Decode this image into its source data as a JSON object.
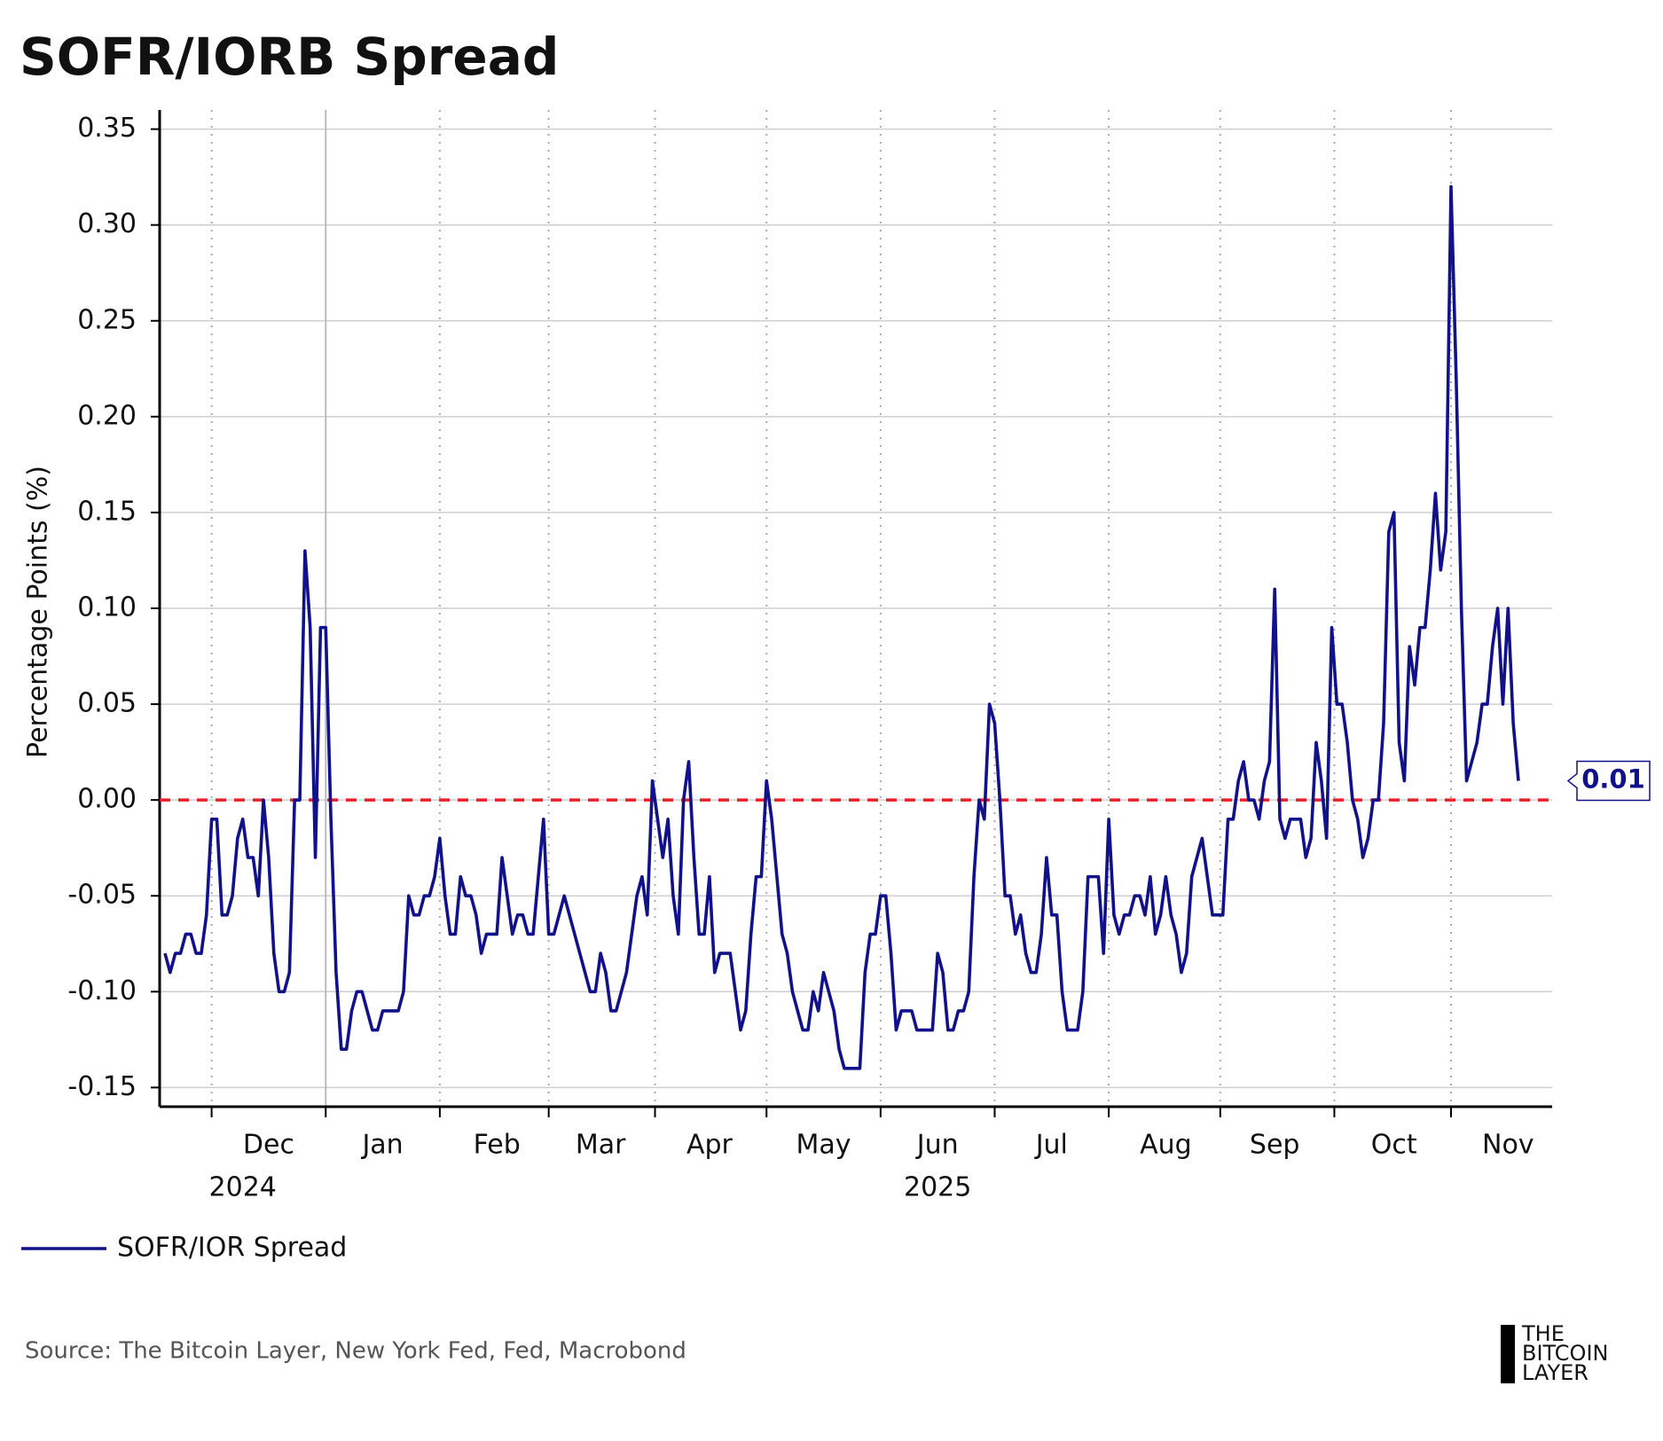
{
  "chart_data": {
    "type": "line",
    "title": "SOFR/IORB Spread",
    "y_axis_label": "Percentage Points (%)",
    "source": "Source: The Bitcoin Layer, New York Fed, Fed, Macrobond",
    "logo": [
      "THE",
      "BITCOIN",
      "LAYER"
    ],
    "legend": "below",
    "grid": true,
    "ylim": [
      -0.16,
      0.36
    ],
    "yticks": [
      0.35,
      {
        "value": 0.3,
        "label": "0.30"
      },
      0.25,
      {
        "value": 0.2,
        "label": "0.20"
      },
      0.15,
      {
        "value": 0.1,
        "label": "0.10"
      },
      0.05,
      {
        "value": 0,
        "label": "0.00"
      },
      -0.05,
      {
        "value": -0.1,
        "label": "-0.10"
      },
      -0.15
    ],
    "reference_line": {
      "value": 0,
      "color": "#e8202a",
      "style": "dashed"
    },
    "categories": [
      null,
      null,
      null,
      null,
      null,
      null,
      null,
      null,
      null,
      null,
      null,
      null,
      null,
      null,
      null,
      null,
      null,
      null,
      null,
      null,
      "Dec",
      null,
      null,
      null,
      null,
      null,
      null,
      null,
      null,
      null,
      null,
      null,
      null,
      null,
      null,
      null,
      null,
      null,
      null,
      null,
      null,
      null,
      "Jan",
      null,
      null,
      null,
      null,
      null,
      null,
      null,
      null,
      null,
      null,
      null,
      null,
      null,
      null,
      null,
      null,
      null,
      null,
      null,
      null,
      null,
      "Feb",
      null,
      null,
      null,
      null,
      null,
      null,
      null,
      null,
      null,
      null,
      null,
      null,
      null,
      null,
      null,
      null,
      null,
      null,
      null,
      "Mar",
      null,
      null,
      null,
      null,
      null,
      null,
      null,
      null,
      null,
      null,
      null,
      null,
      null,
      null,
      null,
      null,
      null,
      null,
      null,
      null,
      "Apr",
      null,
      null,
      null,
      null,
      null,
      null,
      null,
      null,
      null,
      null,
      null,
      null,
      null,
      null,
      null,
      null,
      null,
      null,
      null,
      null,
      null,
      "May",
      null,
      null,
      null,
      null,
      null,
      null,
      null,
      null,
      null,
      null,
      null,
      null,
      null,
      null,
      null,
      null,
      null,
      null,
      null,
      null,
      null,
      "Jun",
      null,
      null,
      null,
      null,
      null,
      null,
      null,
      null,
      null,
      null,
      null,
      null,
      null,
      null,
      null,
      null,
      null,
      null,
      null,
      null,
      null,
      "Jul",
      null,
      null,
      null,
      null,
      null,
      null,
      null,
      null,
      null,
      null,
      null,
      null,
      null,
      null,
      null,
      null,
      null,
      null,
      null,
      null,
      null,
      "Aug",
      null,
      null,
      null,
      null,
      null,
      null,
      null,
      null,
      null,
      null,
      null,
      null,
      null,
      null,
      null,
      null,
      null,
      null,
      null,
      null,
      "Sep",
      null,
      null,
      null,
      null,
      null,
      null,
      null,
      null,
      null,
      null,
      null,
      null,
      null,
      null,
      null,
      null,
      null,
      null,
      null,
      null,
      null,
      null,
      "Oct",
      null,
      null,
      null,
      null,
      null,
      null,
      null,
      null,
      null,
      null,
      null,
      null,
      null,
      null,
      null,
      null,
      null,
      null,
      null,
      null,
      null,
      "Nov",
      null,
      null
    ],
    "category_years": [
      null,
      null,
      null,
      null,
      null,
      null,
      null,
      null,
      null,
      null,
      null,
      null,
      null,
      null,
      null,
      "2024",
      null,
      null,
      null,
      null,
      null,
      null,
      null,
      null,
      null,
      null,
      null,
      null,
      null,
      null,
      null,
      null,
      null,
      null,
      null,
      null,
      null,
      null,
      null,
      null,
      null,
      null,
      null,
      null,
      null,
      null,
      null,
      null,
      null,
      null,
      null,
      null,
      null,
      null,
      null,
      null,
      null,
      null,
      null,
      null,
      null,
      null,
      null,
      null,
      null,
      null,
      null,
      null,
      null,
      null,
      null,
      null,
      null,
      null,
      null,
      null,
      null,
      null,
      null,
      null,
      null,
      null,
      null,
      null,
      null,
      null,
      null,
      null,
      null,
      null,
      null,
      null,
      null,
      null,
      null,
      null,
      null,
      null,
      null,
      null,
      null,
      null,
      null,
      null,
      null,
      null,
      null,
      null,
      null,
      null,
      null,
      null,
      null,
      null,
      null,
      null,
      null,
      null,
      null,
      null,
      null,
      null,
      null,
      null,
      null,
      null,
      null,
      null,
      null,
      null,
      null,
      null,
      null,
      null,
      null,
      null,
      null,
      null,
      null,
      null,
      null,
      null,
      null,
      null,
      null,
      null,
      null,
      null,
      null,
      "2025",
      null,
      null,
      null,
      null,
      null,
      null,
      null,
      null,
      null,
      null,
      null,
      null,
      null,
      null,
      null,
      null,
      null,
      null,
      null,
      null,
      null,
      null,
      null,
      null,
      null,
      null,
      null,
      null,
      null,
      null,
      null,
      null,
      null,
      null,
      null,
      null,
      null,
      null,
      null,
      null,
      null,
      null,
      null,
      null,
      null,
      null,
      null,
      null,
      null,
      null,
      null,
      null,
      null,
      null,
      null,
      null,
      null,
      null,
      null,
      null,
      null,
      null,
      null,
      null,
      null,
      null,
      null,
      null,
      null,
      null,
      null,
      null,
      null,
      null,
      null,
      null,
      null,
      null,
      null,
      null,
      null,
      null,
      null,
      null,
      null,
      null,
      null,
      null,
      null,
      null,
      null,
      null,
      null,
      null,
      null,
      null,
      null,
      null,
      null,
      null,
      null,
      null,
      null,
      null,
      null,
      null,
      null,
      null,
      null,
      null,
      null,
      null
    ],
    "series": [
      {
        "name": "SOFR/IOR Spread",
        "color": "#11118a",
        "values": [
          -0.08,
          -0.09,
          -0.08,
          -0.08,
          -0.07,
          -0.07,
          -0.08,
          -0.08,
          -0.06,
          -0.01,
          -0.01,
          -0.06,
          -0.06,
          -0.05,
          -0.02,
          -0.01,
          -0.03,
          -0.03,
          -0.05,
          0.0,
          -0.03,
          -0.08,
          -0.1,
          -0.1,
          -0.09,
          0.0,
          0.0,
          0.13,
          0.09,
          -0.03,
          0.09,
          0.09,
          -0.01,
          -0.09,
          -0.13,
          -0.13,
          -0.11,
          -0.1,
          -0.1,
          -0.11,
          -0.12,
          -0.12,
          -0.11,
          -0.11,
          -0.11,
          -0.11,
          -0.1,
          -0.05,
          -0.06,
          -0.06,
          -0.05,
          -0.05,
          -0.04,
          -0.02,
          -0.05,
          -0.07,
          -0.07,
          -0.04,
          -0.05,
          -0.05,
          -0.06,
          -0.08,
          -0.07,
          -0.07,
          -0.07,
          -0.03,
          -0.05,
          -0.07,
          -0.06,
          -0.06,
          -0.07,
          -0.07,
          -0.04,
          -0.01,
          -0.07,
          -0.07,
          -0.06,
          -0.05,
          -0.06,
          -0.07,
          -0.08,
          -0.09,
          -0.1,
          -0.1,
          -0.08,
          -0.09,
          -0.11,
          -0.11,
          -0.1,
          -0.09,
          -0.07,
          -0.05,
          -0.04,
          -0.06,
          0.01,
          -0.01,
          -0.03,
          -0.01,
          -0.05,
          -0.07,
          0.0,
          0.02,
          -0.03,
          -0.07,
          -0.07,
          -0.04,
          -0.09,
          -0.08,
          -0.08,
          -0.08,
          -0.1,
          -0.12,
          -0.11,
          -0.07,
          -0.04,
          -0.04,
          0.01,
          -0.01,
          -0.04,
          -0.07,
          -0.08,
          -0.1,
          -0.11,
          -0.12,
          -0.12,
          -0.1,
          -0.11,
          -0.09,
          -0.1,
          -0.11,
          -0.13,
          -0.14,
          -0.14,
          -0.14,
          -0.14,
          -0.09,
          -0.07,
          -0.07,
          -0.05,
          -0.05,
          -0.08,
          -0.12,
          -0.11,
          -0.11,
          -0.11,
          -0.12,
          -0.12,
          -0.12,
          -0.12,
          -0.08,
          -0.09,
          -0.12,
          -0.12,
          -0.11,
          -0.11,
          -0.1,
          -0.04,
          0.0,
          -0.01,
          0.05,
          0.04,
          0.0,
          -0.05,
          -0.05,
          -0.07,
          -0.06,
          -0.08,
          -0.09,
          -0.09,
          -0.07,
          -0.03,
          -0.06,
          -0.06,
          -0.1,
          -0.12,
          -0.12,
          -0.12,
          -0.1,
          -0.04,
          -0.04,
          -0.04,
          -0.08,
          -0.01,
          -0.06,
          -0.07,
          -0.06,
          -0.06,
          -0.05,
          -0.05,
          -0.06,
          -0.04,
          -0.07,
          -0.06,
          -0.04,
          -0.06,
          -0.07,
          -0.09,
          -0.08,
          -0.04,
          -0.03,
          -0.02,
          -0.04,
          -0.06,
          -0.06,
          -0.06,
          -0.01,
          -0.01,
          0.01,
          0.02,
          0.0,
          0.0,
          -0.01,
          0.01,
          0.02,
          0.11,
          -0.01,
          -0.02,
          -0.01,
          -0.01,
          -0.01,
          -0.03,
          -0.02,
          0.03,
          0.01,
          -0.02,
          0.09,
          0.05,
          0.05,
          0.03,
          0.0,
          -0.01,
          -0.03,
          -0.02,
          0.0,
          0.0,
          0.04,
          0.14,
          0.15,
          0.03,
          0.01,
          0.08,
          0.06,
          0.09,
          0.09,
          0.12,
          0.16,
          0.12,
          0.14,
          0.32,
          0.22,
          0.1,
          0.01,
          0.02,
          0.03,
          0.05,
          0.05,
          0.08,
          0.1,
          0.05,
          0.1,
          0.04,
          0.01
        ]
      }
    ]
  }
}
